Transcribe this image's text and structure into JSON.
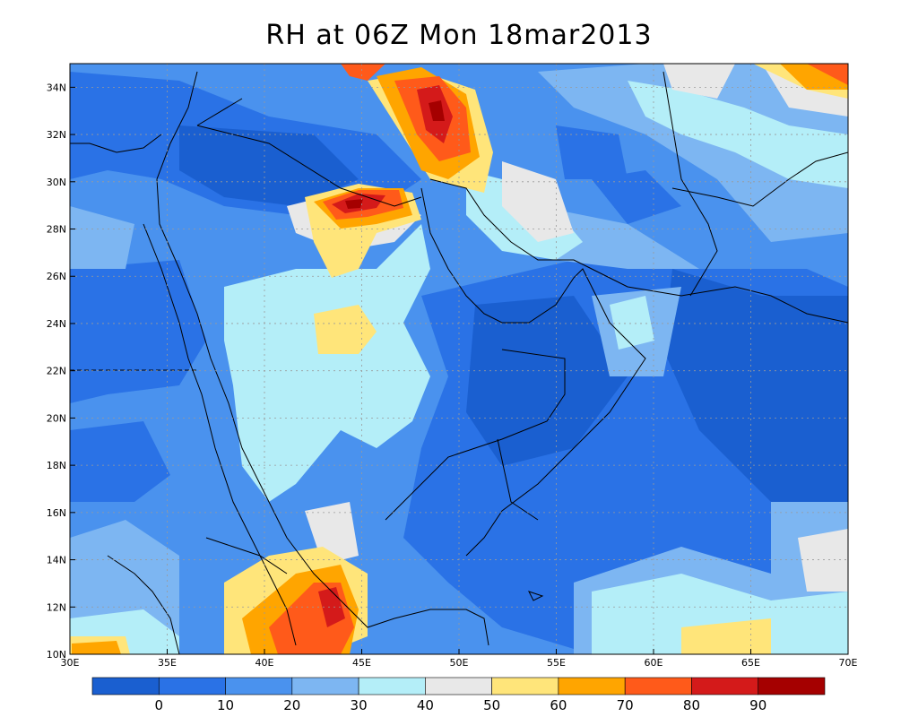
{
  "title": "RH at 06Z Mon 18mar2013",
  "map": {
    "lon_range": [
      30,
      70
    ],
    "lat_range": [
      10,
      35
    ],
    "x_ticks": [
      "30E",
      "35E",
      "40E",
      "45E",
      "50E",
      "55E",
      "60E",
      "65E",
      "70E"
    ],
    "y_ticks": [
      "10N",
      "12N",
      "14N",
      "16N",
      "18N",
      "20N",
      "22N",
      "24N",
      "26N",
      "28N",
      "30N",
      "32N",
      "34N"
    ],
    "grid": "dotted"
  },
  "colorbar": {
    "labels": [
      "0",
      "10",
      "20",
      "30",
      "40",
      "50",
      "60",
      "70",
      "80",
      "90"
    ],
    "colors": [
      "#1a5fd0",
      "#2a72e6",
      "#4a92ee",
      "#7db6f2",
      "#b4eef8",
      "#e8e8e8",
      "#ffe57a",
      "#ffa500",
      "#ff5a1a",
      "#d41a1a",
      "#a50000"
    ]
  }
}
